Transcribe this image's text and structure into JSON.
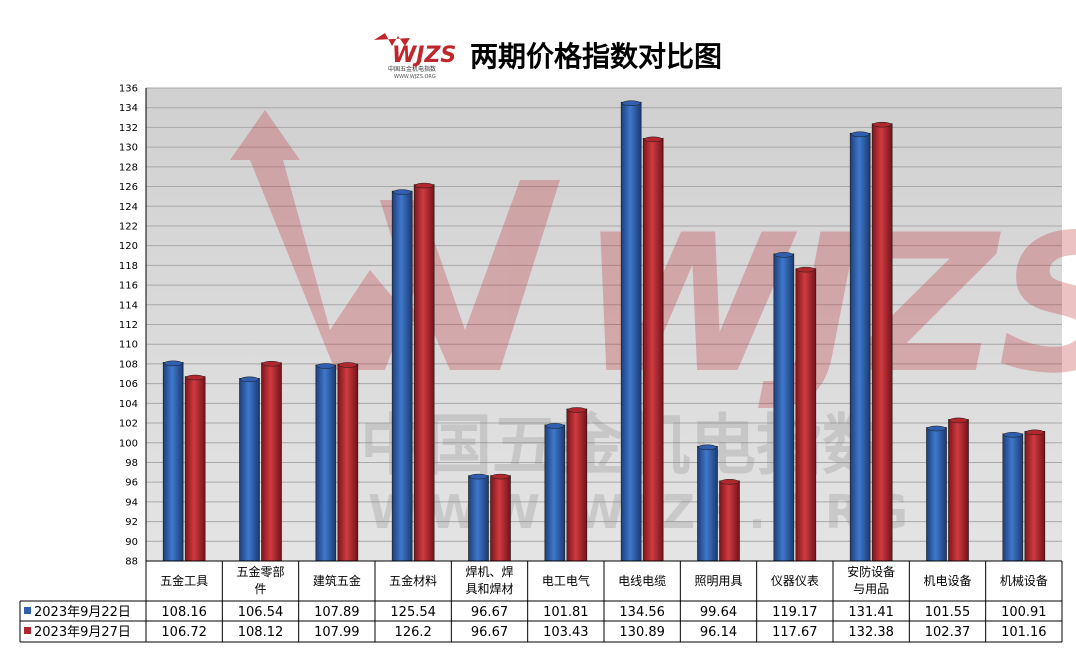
{
  "logo": {
    "text": "WJZS",
    "subtext": "中国五金机电指数",
    "url_text": "WWW.WJZS.ORG"
  },
  "watermark": {
    "big": "WJZS",
    "line1": "中国五金机电指数",
    "line2": "WWW.WJZS.ORG"
  },
  "colors": {
    "series1": "#2f5fae",
    "series2": "#b0282e",
    "plot_bg": "#d4d4d4"
  },
  "chart_data": {
    "type": "bar",
    "title": "两期价格指数对比图",
    "categories": [
      [
        "五金工具"
      ],
      [
        "五金零部",
        "件"
      ],
      [
        "建筑五金"
      ],
      [
        "五金材料"
      ],
      [
        "焊机、焊",
        "具和焊材"
      ],
      [
        "电工电气"
      ],
      [
        "电线电缆"
      ],
      [
        "照明用具"
      ],
      [
        "仪器仪表"
      ],
      [
        "安防设备",
        "与用品"
      ],
      [
        "机电设备"
      ],
      [
        "机械设备"
      ]
    ],
    "series": [
      {
        "name": "2023年9月22日",
        "values": [
          108.16,
          106.54,
          107.89,
          125.54,
          96.67,
          101.81,
          134.56,
          99.64,
          119.17,
          131.41,
          101.55,
          100.91
        ]
      },
      {
        "name": "2023年9月27日",
        "values": [
          106.72,
          108.12,
          107.99,
          126.2,
          96.67,
          103.43,
          130.89,
          96.14,
          117.67,
          132.38,
          102.37,
          101.16
        ]
      }
    ],
    "ylim": [
      88,
      136
    ],
    "ytick_step": 2,
    "grid": true,
    "legend": "data-table"
  }
}
